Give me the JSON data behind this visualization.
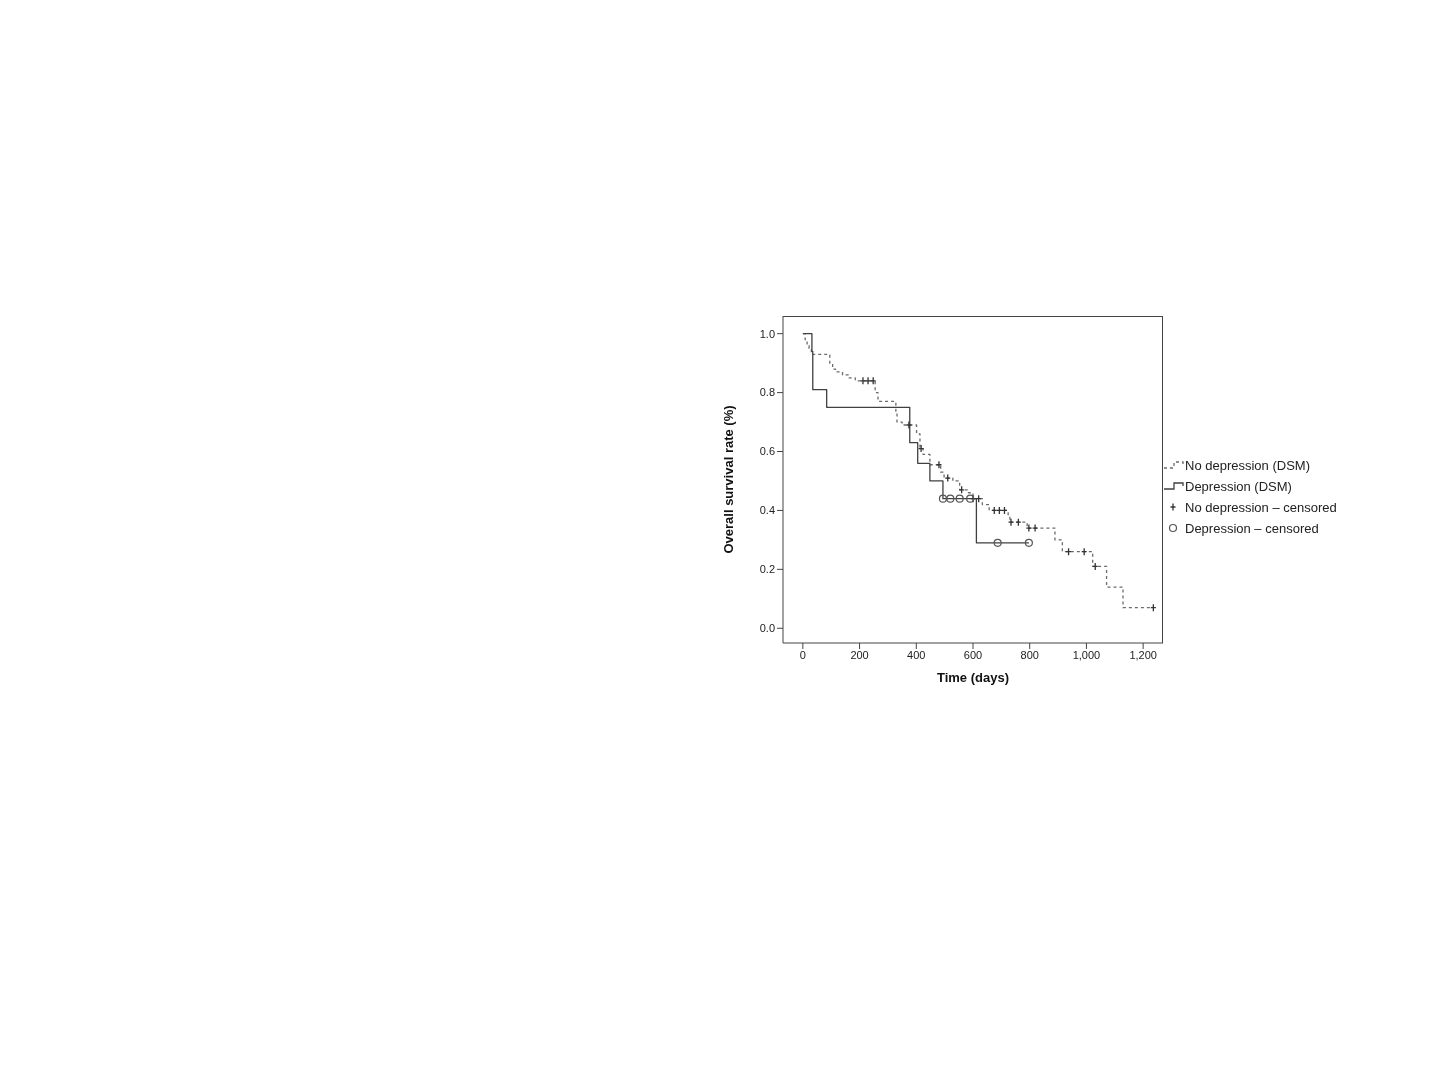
{
  "chart_data": {
    "type": "line",
    "xlabel": "Time (days)",
    "ylabel": "Overall survival rate (%)",
    "xlim": [
      -70,
      1270
    ],
    "xticks": [
      0,
      200,
      400,
      600,
      800,
      {
        "value": 1000,
        "label": "1,000"
      },
      {
        "value": 1200,
        "label": "1,200"
      }
    ],
    "ylim": [
      -0.05,
      1.06
    ],
    "yticks": [
      {
        "value": 0,
        "label": "0.0"
      },
      {
        "value": 0.2,
        "label": "0.2"
      },
      {
        "value": 0.4,
        "label": "0.4"
      },
      {
        "value": 0.6,
        "label": "0.6"
      },
      {
        "value": 0.8,
        "label": "0.8"
      },
      {
        "value": 1,
        "label": "1.0"
      }
    ],
    "grid": false,
    "legend": "right",
    "series": [
      {
        "name": "No depression (DSM)",
        "type": "step",
        "color": "#6b6b6b",
        "line_style": "dashed",
        "marker": "none",
        "x": [
          0,
          8,
          15,
          22,
          30,
          95,
          105,
          115,
          140,
          160,
          185,
          255,
          265,
          328,
          332,
          350,
          401,
          413,
          424,
          448,
          486,
          498,
          529,
          553,
          584,
          600,
          633,
          657,
          724,
          730,
          791,
          889,
          915,
          1022,
          1071,
          1129,
          1236
        ],
        "values": [
          1,
          0.98,
          0.96,
          0.95,
          0.93,
          0.9,
          0.88,
          0.87,
          0.86,
          0.85,
          0.84,
          0.8,
          0.77,
          0.73,
          0.7,
          0.69,
          0.66,
          0.61,
          0.59,
          0.555,
          0.53,
          0.51,
          0.5,
          0.47,
          0.46,
          0.44,
          0.42,
          0.4,
          0.38,
          0.36,
          0.34,
          0.3,
          0.26,
          0.21,
          0.14,
          0.07,
          0.07
        ]
      },
      {
        "name": "Depression (DSM)",
        "type": "step",
        "color": "#404040",
        "line_style": "solid",
        "marker": "none",
        "x": [
          0,
          32,
          35,
          84,
          377,
          405,
          448,
          494,
          612,
          797
        ],
        "values": [
          1,
          0.94,
          0.81,
          0.75,
          0.63,
          0.56,
          0.5,
          0.44,
          0.29,
          0.29
        ]
      },
      {
        "name": "No depression – censored",
        "type": "scatter",
        "color": "#333333",
        "marker": "cross",
        "x": [
          212,
          230,
          248,
          374,
          417,
          480,
          511,
          560,
          600,
          620,
          675,
          693,
          711,
          734,
          760,
          797,
          819,
          937,
          992,
          1031,
          1236
        ],
        "values": [
          0.84,
          0.84,
          0.84,
          0.69,
          0.61,
          0.555,
          0.51,
          0.47,
          0.44,
          0.44,
          0.4,
          0.4,
          0.4,
          0.36,
          0.36,
          0.34,
          0.34,
          0.26,
          0.26,
          0.21,
          0.07
        ]
      },
      {
        "name": "Depression – censored",
        "type": "scatter",
        "color": "#555555",
        "marker": "circle",
        "x": [
          494,
          520,
          553,
          590,
          687,
          797
        ],
        "values": [
          0.44,
          0.44,
          0.44,
          0.44,
          0.29,
          0.29
        ]
      }
    ]
  }
}
